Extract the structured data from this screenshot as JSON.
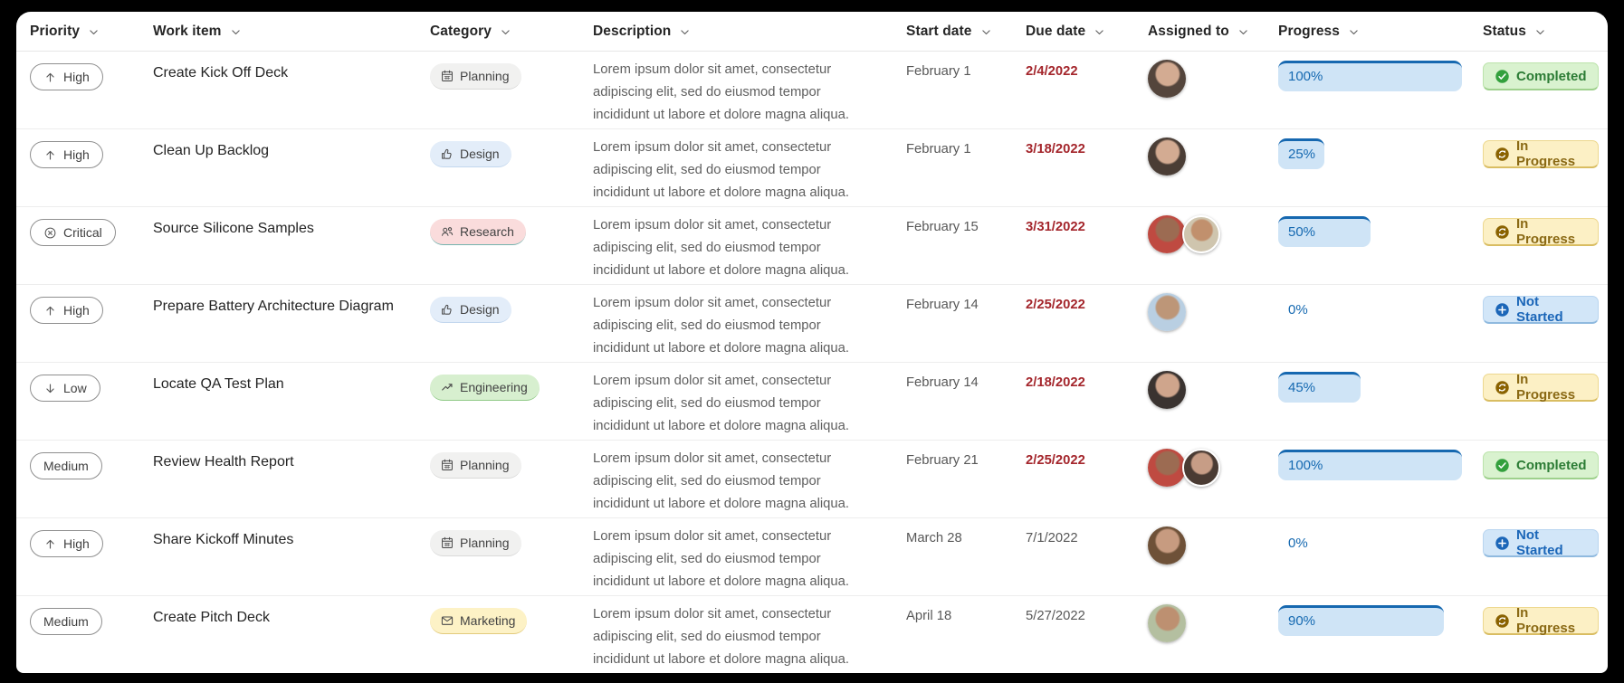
{
  "colors": {
    "page_background": "#000000",
    "card_background": "#ffffff",
    "accent_blue": "#1668b0",
    "overdue_red": "#a4262c",
    "row_divider": "#ededed"
  },
  "columns": [
    {
      "label": "Priority",
      "sort_icon": "chevron-down"
    },
    {
      "label": "Work item",
      "sort_icon": "chevron-down"
    },
    {
      "label": "Category",
      "sort_icon": "chevron-down"
    },
    {
      "label": "Description",
      "sort_icon": "chevron-down"
    },
    {
      "label": "Start date",
      "sort_icon": "chevron-down"
    },
    {
      "label": "Due date",
      "sort_icon": "chevron-down"
    },
    {
      "label": "Assigned to",
      "sort_icon": "chevron-down"
    },
    {
      "label": "Progress",
      "sort_icon": "chevron-down"
    },
    {
      "label": "Status",
      "sort_icon": "chevron-down"
    }
  ],
  "rows": [
    {
      "priority": {
        "label": "High",
        "icon": "arrow-up"
      },
      "work_item": "Create Kick Off Deck",
      "category": {
        "label": "Planning",
        "key": "planning",
        "icon": "calendar"
      },
      "description": "Lorem ipsum dolor sit amet, consectetur adipiscing elit, sed do eiusmod tempor incididunt ut labore et dolore magna aliqua.",
      "start_date": "February 1",
      "due_date": {
        "label": "2/4/2022",
        "overdue": true
      },
      "assigned_to": {
        "avatars": [
          {
            "fg": "#d3ab92",
            "bg": "#54453c"
          }
        ]
      },
      "progress": {
        "percent": 100,
        "label": "100%"
      },
      "status": {
        "label": "Completed",
        "key": "completed",
        "icon": "check-circle"
      }
    },
    {
      "priority": {
        "label": "High",
        "icon": "arrow-up"
      },
      "work_item": "Clean Up Backlog",
      "category": {
        "label": "Design",
        "key": "design",
        "icon": "like"
      },
      "description": "Lorem ipsum dolor sit amet, consectetur adipiscing elit, sed do eiusmod tempor incididunt ut labore et dolore magna aliqua.",
      "start_date": "February 1",
      "due_date": {
        "label": "3/18/2022",
        "overdue": true
      },
      "assigned_to": {
        "avatars": [
          {
            "fg": "#d3ab92",
            "bg": "#4a3d35"
          }
        ]
      },
      "progress": {
        "percent": 25,
        "label": "25%"
      },
      "status": {
        "label": "In Progress",
        "key": "in-progress",
        "icon": "sync"
      }
    },
    {
      "priority": {
        "label": "Critical",
        "icon": "circle-x"
      },
      "work_item": "Source Silicone Samples",
      "category": {
        "label": "Research",
        "key": "research",
        "icon": "people"
      },
      "description": "Lorem ipsum dolor sit amet, consectetur adipiscing elit, sed do eiusmod tempor incididunt ut labore et dolore magna aliqua.",
      "start_date": "February 15",
      "due_date": {
        "label": "3/31/2022",
        "overdue": true
      },
      "assigned_to": {
        "avatars": [
          {
            "fg": "#9c6b52",
            "bg": "#bf4a41"
          },
          {
            "fg": "#c1906d",
            "bg": "#cfc5ae"
          }
        ]
      },
      "progress": {
        "percent": 50,
        "label": "50%"
      },
      "status": {
        "label": "In Progress",
        "key": "in-progress",
        "icon": "sync"
      }
    },
    {
      "priority": {
        "label": "High",
        "icon": "arrow-up"
      },
      "work_item": "Prepare Battery Architecture Diagram",
      "category": {
        "label": "Design",
        "key": "design",
        "icon": "like"
      },
      "description": "Lorem ipsum dolor sit amet, consectetur adipiscing elit, sed do eiusmod tempor incididunt ut labore et dolore magna aliqua.",
      "start_date": "February 14",
      "due_date": {
        "label": "2/25/2022",
        "overdue": true
      },
      "assigned_to": {
        "avatars": [
          {
            "fg": "#bd9678",
            "bg": "#b9cfe2"
          }
        ]
      },
      "progress": {
        "percent": 0,
        "label": "0%"
      },
      "status": {
        "label": "Not Started",
        "key": "not-started",
        "icon": "plus-circle"
      }
    },
    {
      "priority": {
        "label": "Low",
        "icon": "arrow-down"
      },
      "work_item": "Locate QA Test Plan",
      "category": {
        "label": "Engineering",
        "key": "engineering",
        "icon": "trend-up"
      },
      "description": "Lorem ipsum dolor sit amet, consectetur adipiscing elit, sed do eiusmod tempor incididunt ut labore et dolore magna aliqua.",
      "start_date": "February 14",
      "due_date": {
        "label": "2/18/2022",
        "overdue": true
      },
      "assigned_to": {
        "avatars": [
          {
            "fg": "#cfa58c",
            "bg": "#3a3330"
          }
        ]
      },
      "progress": {
        "percent": 45,
        "label": "45%"
      },
      "status": {
        "label": "In Progress",
        "key": "in-progress",
        "icon": "sync"
      }
    },
    {
      "priority": {
        "label": "Medium",
        "icon": null
      },
      "work_item": "Review Health Report",
      "category": {
        "label": "Planning",
        "key": "planning",
        "icon": "calendar"
      },
      "description": "Lorem ipsum dolor sit amet, consectetur adipiscing elit, sed do eiusmod tempor incididunt ut labore et dolore magna aliqua.",
      "start_date": "February 21",
      "due_date": {
        "label": "2/25/2022",
        "overdue": true
      },
      "assigned_to": {
        "avatars": [
          {
            "fg": "#9c6b52",
            "bg": "#bf4a41"
          },
          {
            "fg": "#c79d86",
            "bg": "#4a3b33"
          }
        ]
      },
      "progress": {
        "percent": 100,
        "label": "100%"
      },
      "status": {
        "label": "Completed",
        "key": "completed",
        "icon": "check-circle"
      }
    },
    {
      "priority": {
        "label": "High",
        "icon": "arrow-up"
      },
      "work_item": "Share Kickoff Minutes",
      "category": {
        "label": "Planning",
        "key": "planning",
        "icon": "calendar"
      },
      "description": "Lorem ipsum dolor sit amet, consectetur adipiscing elit, sed do eiusmod tempor incididunt ut labore et dolore magna aliqua.",
      "start_date": "March 28",
      "due_date": {
        "label": "7/1/2022",
        "overdue": false
      },
      "assigned_to": {
        "avatars": [
          {
            "fg": "#c79b80",
            "bg": "#6e5138"
          }
        ]
      },
      "progress": {
        "percent": 0,
        "label": "0%"
      },
      "status": {
        "label": "Not Started",
        "key": "not-started",
        "icon": "plus-circle"
      }
    },
    {
      "priority": {
        "label": "Medium",
        "icon": null
      },
      "work_item": "Create Pitch Deck",
      "category": {
        "label": "Marketing",
        "key": "marketing",
        "icon": "mail"
      },
      "description": "Lorem ipsum dolor sit amet, consectetur adipiscing elit, sed do eiusmod tempor incididunt ut labore et dolore magna aliqua.",
      "start_date": "April 18",
      "due_date": {
        "label": "5/27/2022",
        "overdue": false
      },
      "assigned_to": {
        "avatars": [
          {
            "fg": "#bd9071",
            "bg": "#b4bfa0"
          }
        ]
      },
      "progress": {
        "percent": 90,
        "label": "90%"
      },
      "status": {
        "label": "In Progress",
        "key": "in-progress",
        "icon": "sync"
      }
    }
  ]
}
